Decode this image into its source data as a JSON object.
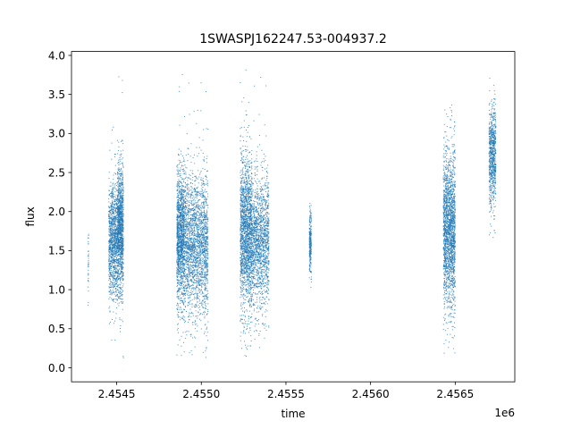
{
  "chart_data": {
    "type": "scatter",
    "title": "1SWASPJ162247.53-004937.2",
    "xlabel": "time",
    "ylabel": "flux",
    "x_offset_label": "1e6",
    "xlim": [
      2454233,
      2456852
    ],
    "ylim": [
      -0.18,
      4.05
    ],
    "x_ticks": [
      2454500,
      2455000,
      2455500,
      2456000,
      2456500
    ],
    "x_tick_labels": [
      "2.4545",
      "2.4550",
      "2.4555",
      "2.4560",
      "2.4565"
    ],
    "y_ticks": [
      0.0,
      0.5,
      1.0,
      1.5,
      2.0,
      2.5,
      3.0,
      3.5,
      4.0
    ],
    "y_tick_labels": [
      "0.0",
      "0.5",
      "1.0",
      "1.5",
      "2.0",
      "2.5",
      "3.0",
      "3.5",
      "4.0"
    ],
    "grid": false,
    "marker_color": "#1f77b4",
    "series": [
      {
        "clusters": [
          {
            "x_range": [
              2454331,
              2454334
            ],
            "y_center": 1.35,
            "y_spread": 0.28,
            "y_min": 0.62,
            "y_max": 1.72,
            "n": 35
          },
          {
            "x_range": [
              2454453,
              2454505
            ],
            "y_center": 1.62,
            "y_spread": 0.36,
            "y_min": 0.35,
            "y_max": 3.2,
            "n": 1100
          },
          {
            "x_range": [
              2454505,
              2454540
            ],
            "y_center": 1.78,
            "y_spread": 0.42,
            "y_min": 0.08,
            "y_max": 3.85,
            "n": 1300
          },
          {
            "x_range": [
              2454855,
              2454900
            ],
            "y_center": 1.68,
            "y_spread": 0.42,
            "y_min": 0.15,
            "y_max": 3.85,
            "n": 1400
          },
          {
            "x_range": [
              2454900,
              2455040
            ],
            "y_center": 1.58,
            "y_spread": 0.45,
            "y_min": 0.0,
            "y_max": 3.85,
            "n": 2200
          },
          {
            "x_range": [
              2455230,
              2455300
            ],
            "y_center": 1.72,
            "y_spread": 0.48,
            "y_min": 0.1,
            "y_max": 3.85,
            "n": 1900
          },
          {
            "x_range": [
              2455300,
              2455400
            ],
            "y_center": 1.6,
            "y_spread": 0.42,
            "y_min": 0.25,
            "y_max": 3.85,
            "n": 1500
          },
          {
            "x_range": [
              2455638,
              2455650
            ],
            "y_center": 1.58,
            "y_spread": 0.22,
            "y_min": 0.82,
            "y_max": 2.12,
            "n": 260
          },
          {
            "x_range": [
              2456430,
              2456500
            ],
            "y_center": 1.75,
            "y_spread": 0.5,
            "y_min": 0.02,
            "y_max": 3.48,
            "n": 2000
          },
          {
            "x_range": [
              2456700,
              2456740
            ],
            "y_center": 2.72,
            "y_spread": 0.32,
            "y_min": 1.6,
            "y_max": 3.82,
            "n": 800
          }
        ]
      }
    ]
  }
}
